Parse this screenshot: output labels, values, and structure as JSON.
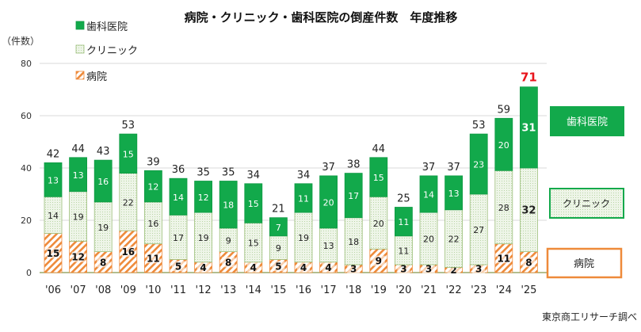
{
  "chart_data": {
    "type": "bar",
    "stacked": true,
    "title": "病院・クリニック・歯科医院の倒産件数　年度推移",
    "ylabel": "（件数）",
    "ylim": [
      0,
      80
    ],
    "yticks": [
      0,
      20,
      40,
      60,
      80
    ],
    "grid": true,
    "legend_position": "top-left",
    "source": "東京商工リサーチ調べ",
    "categories": [
      "'06",
      "'07",
      "'08",
      "'09",
      "'10",
      "'11",
      "'12",
      "'13",
      "'14",
      "'15",
      "'16",
      "'17",
      "'18",
      "'19",
      "'20",
      "'21",
      "'22",
      "'23",
      "'24",
      "'25"
    ],
    "series": [
      {
        "name": "病院",
        "color": "#ee8a3a",
        "pattern": "diagonal-hatch",
        "values": [
          15,
          12,
          8,
          16,
          11,
          5,
          4,
          8,
          4,
          5,
          4,
          4,
          3,
          9,
          3,
          3,
          2,
          3,
          11,
          8
        ]
      },
      {
        "name": "クリニック",
        "color": "#d9ead0",
        "pattern": "dots",
        "values": [
          14,
          19,
          19,
          22,
          16,
          17,
          19,
          9,
          15,
          9,
          19,
          13,
          18,
          20,
          11,
          20,
          22,
          27,
          28,
          32
        ]
      },
      {
        "name": "歯科医院",
        "color": "#12a94b",
        "pattern": "solid",
        "values": [
          13,
          13,
          16,
          15,
          12,
          14,
          12,
          18,
          15,
          7,
          11,
          20,
          17,
          15,
          11,
          14,
          13,
          23,
          20,
          31
        ]
      }
    ],
    "totals": [
      42,
      44,
      43,
      53,
      39,
      36,
      35,
      35,
      34,
      21,
      34,
      37,
      38,
      44,
      25,
      37,
      37,
      53,
      59,
      71
    ],
    "highlight_total_color": "#e8141b",
    "side_labels": [
      "歯科医院",
      "クリニック",
      "病院"
    ]
  }
}
